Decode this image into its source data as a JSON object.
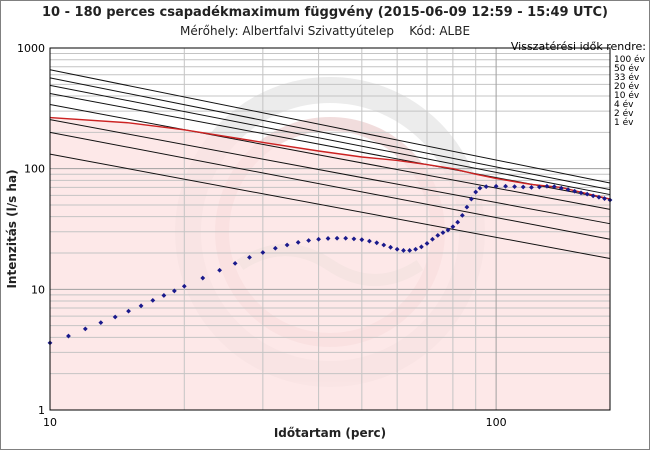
{
  "chart_data": {
    "type": "line",
    "title": "10 - 180 perces csapadékmaximum függvény (2015-06-09 12:59 - 15:49 UTC)",
    "subtitle": "Mérőhely: Albertfalvi Szivattyútelep    Kód: ALBE",
    "xlabel": "Időtartam (perc)",
    "ylabel": "Intenzitás (l/s ha)",
    "x_scale": "log",
    "y_scale": "log",
    "xlim": [
      10,
      180
    ],
    "ylim": [
      1,
      1000
    ],
    "x_tick_labels": [
      {
        "value": 10,
        "label": "10"
      },
      {
        "value": 100,
        "label": "100"
      }
    ],
    "y_tick_labels": [
      {
        "value": 1000,
        "label": "1000"
      },
      {
        "value": 100,
        "label": "100"
      },
      {
        "value": 10,
        "label": "10"
      },
      {
        "value": 1,
        "label": "1"
      }
    ],
    "grid": true,
    "legend_title": "Visszatérési idők rendre:",
    "legend_position": "right",
    "return_period_curves": [
      {
        "name": "100 év",
        "start": [
          10,
          660
        ],
        "end": [
          180,
          76
        ]
      },
      {
        "name": "50 év",
        "start": [
          10,
          565
        ],
        "end": [
          180,
          67
        ]
      },
      {
        "name": "33 év",
        "start": [
          10,
          490
        ],
        "end": [
          180,
          61
        ]
      },
      {
        "name": "20 év",
        "start": [
          10,
          420
        ],
        "end": [
          180,
          56
        ]
      },
      {
        "name": "10 év",
        "start": [
          10,
          340
        ],
        "end": [
          180,
          46
        ]
      },
      {
        "name": "4 év",
        "start": [
          10,
          255
        ],
        "end": [
          180,
          35
        ]
      },
      {
        "name": "2 év",
        "start": [
          10,
          200
        ],
        "end": [
          180,
          26
        ]
      },
      {
        "name": "1 év",
        "start": [
          10,
          132
        ],
        "end": [
          180,
          18
        ]
      }
    ],
    "envelope_curve": {
      "color": "#cc2222",
      "fill": "#fde2e2",
      "points": [
        [
          10,
          265
        ],
        [
          15,
          240
        ],
        [
          20,
          210
        ],
        [
          30,
          165
        ],
        [
          40,
          140
        ],
        [
          50,
          125
        ],
        [
          60,
          117
        ],
        [
          70,
          108
        ],
        [
          80,
          100
        ],
        [
          90,
          90
        ],
        [
          100,
          83
        ],
        [
          110,
          78
        ],
        [
          120,
          74
        ],
        [
          140,
          70
        ],
        [
          160,
          62
        ],
        [
          180,
          56
        ]
      ]
    },
    "series": [
      {
        "marker": "diamond",
        "color": "#1a1a8c",
        "points": [
          [
            10,
            3.6
          ],
          [
            11,
            4.1
          ],
          [
            12,
            4.7
          ],
          [
            13,
            5.3
          ],
          [
            14,
            5.9
          ],
          [
            15,
            6.6
          ],
          [
            16,
            7.3
          ],
          [
            17,
            8.1
          ],
          [
            18,
            8.9
          ],
          [
            19,
            9.7
          ],
          [
            20,
            10.6
          ],
          [
            22,
            12.4
          ],
          [
            24,
            14.4
          ],
          [
            26,
            16.4
          ],
          [
            28,
            18.4
          ],
          [
            30,
            20.2
          ],
          [
            32,
            21.9
          ],
          [
            34,
            23.3
          ],
          [
            36,
            24.5
          ],
          [
            38,
            25.4
          ],
          [
            40,
            26.0
          ],
          [
            42,
            26.4
          ],
          [
            44,
            26.5
          ],
          [
            46,
            26.5
          ],
          [
            48,
            26.2
          ],
          [
            50,
            25.8
          ],
          [
            52,
            25.1
          ],
          [
            54,
            24.3
          ],
          [
            56,
            23.3
          ],
          [
            58,
            22.3
          ],
          [
            60,
            21.5
          ],
          [
            62,
            21.0
          ],
          [
            64,
            21.0
          ],
          [
            66,
            21.5
          ],
          [
            68,
            22.5
          ],
          [
            70,
            24.0
          ],
          [
            72,
            26.0
          ],
          [
            74,
            28.0
          ],
          [
            76,
            29.5
          ],
          [
            78,
            31.0
          ],
          [
            80,
            33.0
          ],
          [
            82,
            36.0
          ],
          [
            84,
            41.0
          ],
          [
            86,
            48.0
          ],
          [
            88,
            56.0
          ],
          [
            90,
            64.0
          ],
          [
            92,
            69.0
          ],
          [
            95,
            71.0
          ],
          [
            100,
            71.5
          ],
          [
            105,
            71.5
          ],
          [
            110,
            71.0
          ],
          [
            115,
            70.5
          ],
          [
            120,
            70.0
          ],
          [
            125,
            70.5
          ],
          [
            130,
            71.5
          ],
          [
            135,
            71.0
          ],
          [
            140,
            69.0
          ],
          [
            145,
            67.0
          ],
          [
            150,
            65.0
          ],
          [
            155,
            63.0
          ],
          [
            160,
            61.5
          ],
          [
            165,
            59.5
          ],
          [
            170,
            58.0
          ],
          [
            175,
            56.5
          ],
          [
            180,
            55.0
          ]
        ]
      }
    ]
  }
}
